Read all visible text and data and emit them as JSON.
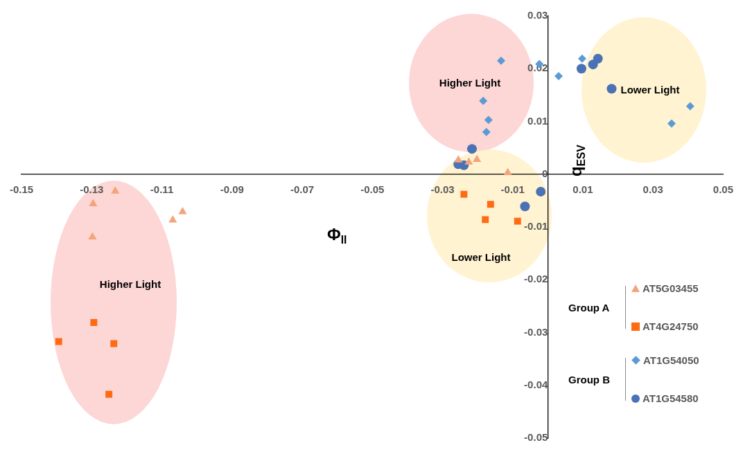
{
  "chart_data": {
    "type": "scatter",
    "xlabel": "Φ$_{II}$",
    "ylabel": "q$_{ESV}$",
    "xlim": [
      -0.15,
      0.05
    ],
    "xticks": [
      -0.15,
      -0.13,
      -0.11,
      -0.09,
      -0.07,
      -0.05,
      -0.03,
      -0.01,
      0.01,
      0.03,
      0.05
    ],
    "ylim": [
      -0.05,
      0.03
    ],
    "yticks": [
      -0.05,
      -0.04,
      -0.03,
      -0.02,
      -0.01,
      0,
      0.01,
      0.02,
      0.03
    ],
    "grid": false,
    "legend": "bottom right",
    "annotations": [
      "Higher Light",
      "Higher Light",
      "Lower Light",
      "Lower Light",
      "Group A",
      "Group B"
    ],
    "series": [
      {
        "name": "AT5G03455",
        "color": "#f4a47a",
        "marker": "triangle",
        "x": [
          -0.1233,
          -0.1296,
          -0.1298,
          -0.1069,
          -0.1041,
          -0.0225,
          -0.0202,
          -0.0255,
          -0.0114
        ],
        "values": [
          -0.0032,
          -0.0056,
          -0.0119,
          -0.0087,
          -0.0071,
          0.0023,
          0.0028,
          0.0027,
          0.0003
        ]
      },
      {
        "name": "AT4G24750",
        "color": "#ff6a13",
        "marker": "square",
        "x": [
          -0.1394,
          -0.1294,
          -0.1237,
          -0.1251,
          -0.0239,
          -0.0163,
          -0.0178,
          -0.0086
        ],
        "values": [
          -0.0317,
          -0.0281,
          -0.0321,
          -0.0417,
          -0.0038,
          -0.0057,
          -0.0086,
          -0.0089
        ]
      },
      {
        "name": "AT1G54050",
        "color": "#5b9bd5",
        "marker": "diamond",
        "x": [
          -0.0133,
          -0.0024,
          0.0031,
          0.0098,
          -0.0184,
          -0.0169,
          -0.0175,
          0.0406,
          0.0353
        ],
        "values": [
          0.0215,
          0.0209,
          0.0186,
          0.0219,
          0.0139,
          0.0103,
          0.008,
          0.0129,
          0.0096
        ]
      },
      {
        "name": "AT1G54580",
        "color": "#4a72b5",
        "marker": "circle",
        "x": [
          -0.0216,
          -0.0255,
          -0.0239,
          -0.002,
          -0.0065,
          0.0096,
          0.0129,
          0.0143,
          0.0182
        ],
        "values": [
          0.0048,
          0.0019,
          0.0017,
          -0.0033,
          -0.0061,
          0.02,
          0.0208,
          0.0219,
          0.0162
        ]
      }
    ]
  }
}
